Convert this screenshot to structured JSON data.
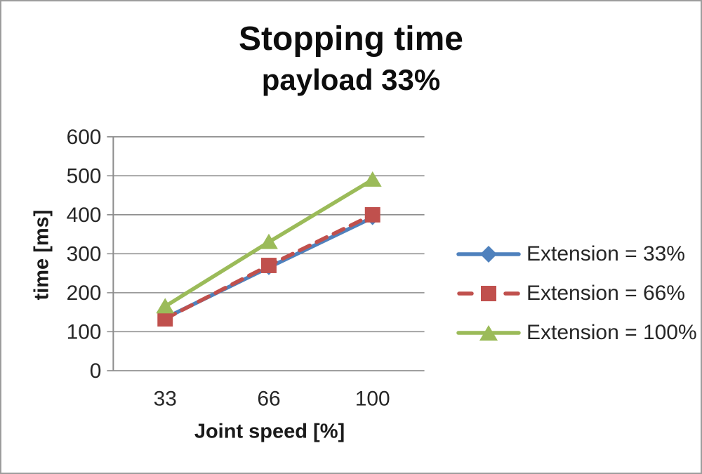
{
  "figure": {
    "background": "#ffffff",
    "border_color": "#9d9d9d"
  },
  "chart_data": {
    "type": "line",
    "title": "Stopping time",
    "subtitle": "payload 33%",
    "xlabel": "Joint speed [%]",
    "ylabel": "time [ms]",
    "categories": [
      "33",
      "66",
      "100"
    ],
    "y_ticks": [
      0,
      100,
      200,
      300,
      400,
      500,
      600
    ],
    "ylim": [
      0,
      600
    ],
    "grid": "horizontal-only",
    "legend_position": "right",
    "axis_color": "#8c8c8c",
    "text_color": "#262626",
    "series": [
      {
        "name": "Extension = 33%",
        "color": "#4f81bd",
        "marker": "diamond",
        "line": "solid",
        "values": [
          135,
          265,
          393
        ]
      },
      {
        "name": "Extension = 66%",
        "color": "#c0504d",
        "marker": "square",
        "line": "dashed",
        "values": [
          133,
          270,
          400
        ]
      },
      {
        "name": "Extension = 100%",
        "color": "#9bbb59",
        "marker": "triangle",
        "line": "solid",
        "values": [
          165,
          330,
          490
        ]
      }
    ]
  }
}
